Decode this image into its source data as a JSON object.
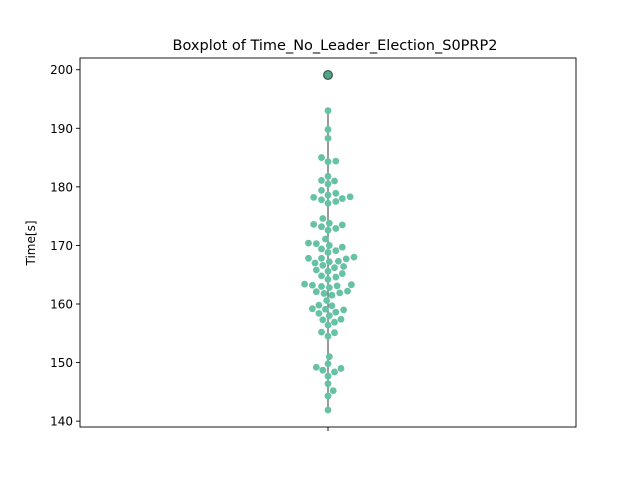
{
  "chart_data": {
    "type": "box",
    "title": "Boxplot of Time_No_Leader_Election_S0PRP2",
    "xlabel": "",
    "ylabel": "Time[s]",
    "ylim": [
      139,
      202
    ],
    "yticks": [
      140,
      150,
      160,
      170,
      180,
      190,
      200
    ],
    "grid": false,
    "box": {
      "min": 141.9,
      "q1": 159.0,
      "median": 164.7,
      "q3": 173.6,
      "max": 193.0,
      "outliers": [
        199.1
      ]
    },
    "points": [
      141.9,
      144.3,
      145.2,
      146.4,
      147.7,
      148.4,
      148.7,
      149.0,
      149.2,
      149.8,
      151.0,
      154.5,
      155.1,
      155.2,
      156.4,
      156.9,
      157.3,
      157.4,
      158.0,
      158.4,
      158.6,
      159.0,
      159.1,
      159.2,
      159.7,
      159.8,
      160.6,
      161.5,
      161.8,
      161.9,
      162.1,
      162.2,
      162.8,
      163.0,
      163.1,
      163.2,
      163.3,
      163.4,
      164.2,
      164.6,
      164.8,
      165.2,
      165.6,
      165.8,
      166.2,
      166.4,
      166.6,
      167.0,
      167.2,
      167.3,
      167.7,
      167.8,
      167.8,
      168.0,
      168.8,
      169.1,
      169.4,
      169.7,
      170.0,
      170.3,
      170.4,
      171.1,
      172.6,
      172.9,
      173.2,
      173.5,
      173.6,
      173.8,
      174.6,
      177.2,
      177.5,
      177.8,
      178.0,
      178.2,
      178.3,
      178.6,
      178.9,
      179.4,
      180.5,
      181.0,
      181.1,
      181.8,
      184.3,
      184.4,
      185.0,
      188.3,
      189.8,
      193.0
    ],
    "colors": {
      "points": "#66c2a5",
      "whisker": "#707070",
      "outlier_fill": "#4aa784"
    }
  }
}
